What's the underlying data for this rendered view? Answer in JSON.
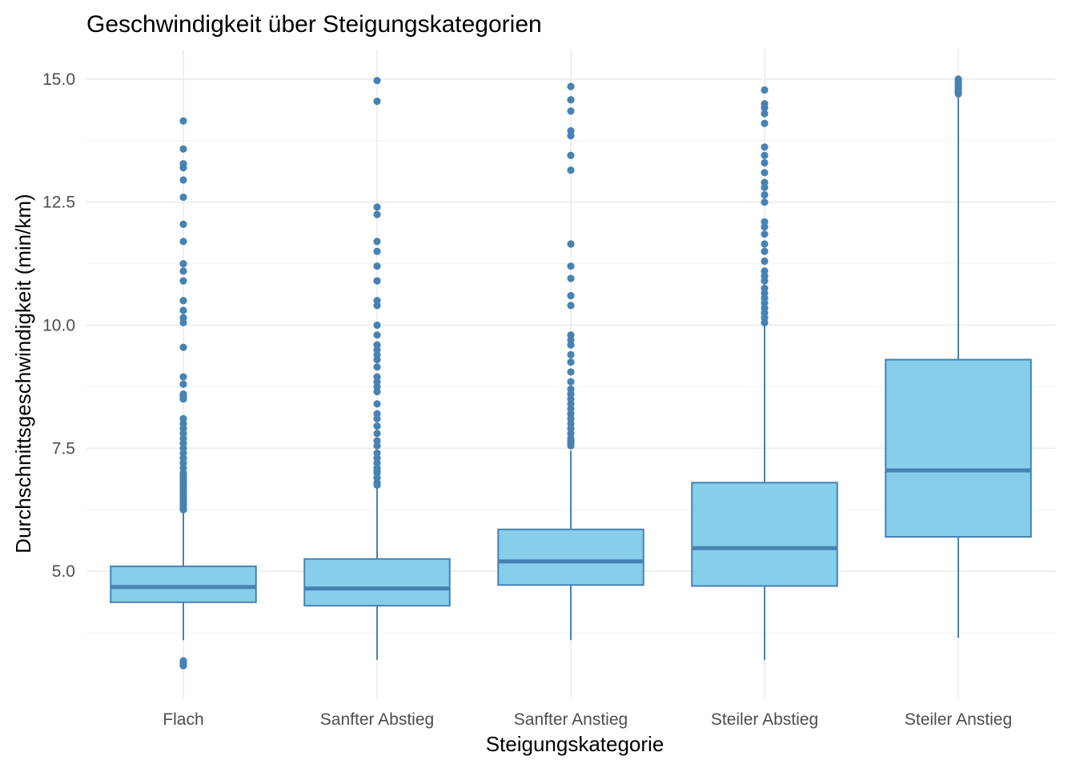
{
  "chart_data": {
    "type": "boxplot",
    "title": "Geschwindigkeit über Steigungskategorien",
    "xlabel": "Steigungskategorie",
    "ylabel": "Durchschnittsgeschwindigkeit (min/km)",
    "ylim": [
      2.4,
      15.6
    ],
    "yticks": [
      5.0,
      7.5,
      10.0,
      12.5,
      15.0
    ],
    "ytick_labels": [
      "5.0",
      "7.5",
      "10.0",
      "12.5",
      "15.0"
    ],
    "grid": true,
    "legend": "none",
    "colors": {
      "fill": "#87ceeb",
      "stroke": "#4682b4",
      "median": "#4682b4",
      "outlier": "#4682b4"
    },
    "categories": [
      "Flach",
      "Sanfter Abstieg",
      "Sanfter Anstieg",
      "Steiler Abstieg",
      "Steiler Anstieg"
    ],
    "boxes": [
      {
        "category": "Flach",
        "whisker_low": 3.6,
        "q1": 4.37,
        "median": 4.68,
        "q3": 5.1,
        "whisker_high": 6.2,
        "outliers": [
          3.08,
          3.13,
          3.18,
          6.25,
          6.3,
          6.35,
          6.4,
          6.45,
          6.5,
          6.55,
          6.6,
          6.65,
          6.7,
          6.75,
          6.8,
          6.85,
          6.9,
          6.95,
          7.0,
          7.1,
          7.2,
          7.3,
          7.4,
          7.5,
          7.6,
          7.7,
          7.8,
          7.9,
          8.0,
          8.1,
          8.5,
          8.55,
          8.6,
          8.8,
          8.95,
          9.55,
          10.05,
          10.15,
          10.3,
          10.5,
          10.9,
          11.1,
          11.25,
          11.7,
          12.05,
          12.6,
          12.95,
          13.2,
          13.28,
          13.58,
          14.15
        ]
      },
      {
        "category": "Sanfter Abstieg",
        "whisker_low": 3.2,
        "q1": 4.3,
        "median": 4.65,
        "q3": 5.25,
        "whisker_high": 6.7,
        "outliers": [
          6.75,
          6.8,
          6.9,
          7.0,
          7.05,
          7.1,
          7.2,
          7.3,
          7.4,
          7.55,
          7.65,
          7.8,
          7.95,
          8.1,
          8.2,
          8.4,
          8.65,
          8.75,
          8.85,
          8.95,
          9.15,
          9.3,
          9.4,
          9.5,
          9.6,
          9.8,
          10.0,
          10.4,
          10.5,
          10.9,
          11.2,
          11.5,
          11.7,
          12.25,
          12.4,
          14.55,
          14.97
        ]
      },
      {
        "category": "Sanfter Anstieg",
        "whisker_low": 3.6,
        "q1": 4.72,
        "median": 5.2,
        "q3": 5.85,
        "whisker_high": 7.45,
        "outliers": [
          7.55,
          7.6,
          7.65,
          7.7,
          7.8,
          7.9,
          8.0,
          8.1,
          8.2,
          8.3,
          8.4,
          8.5,
          8.6,
          8.7,
          8.85,
          9.05,
          9.25,
          9.4,
          9.6,
          9.7,
          9.8,
          10.4,
          10.6,
          10.95,
          11.2,
          11.65,
          13.15,
          13.45,
          13.85,
          13.95,
          14.35,
          14.58,
          14.85
        ]
      },
      {
        "category": "Steiler Abstieg",
        "whisker_low": 3.2,
        "q1": 4.7,
        "median": 5.47,
        "q3": 6.8,
        "whisker_high": 10.0,
        "outliers": [
          10.05,
          10.15,
          10.25,
          10.35,
          10.45,
          10.55,
          10.65,
          10.75,
          10.9,
          11.0,
          11.1,
          11.3,
          11.5,
          11.65,
          11.85,
          12.0,
          12.1,
          12.5,
          12.65,
          12.8,
          12.9,
          13.1,
          13.3,
          13.45,
          13.62,
          14.1,
          14.3,
          14.42,
          14.5,
          14.78
        ]
      },
      {
        "category": "Steiler Anstieg",
        "whisker_low": 3.65,
        "q1": 5.7,
        "median": 7.05,
        "q3": 9.3,
        "whisker_high": 14.65,
        "outliers": [
          14.7,
          14.75,
          14.8,
          14.85,
          14.9,
          14.95,
          15.0
        ]
      }
    ]
  }
}
